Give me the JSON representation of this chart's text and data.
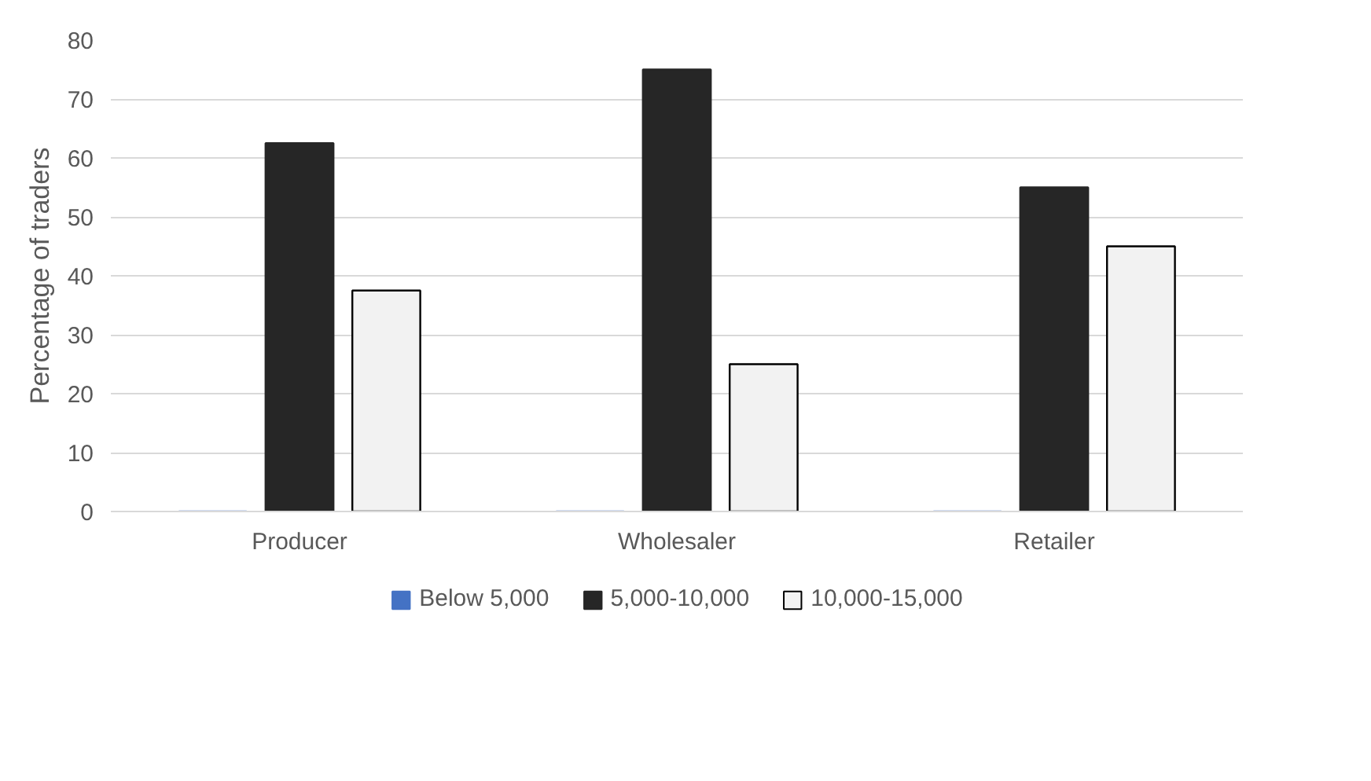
{
  "chart_data": {
    "type": "bar",
    "ylabel": "Percentage of traders",
    "categories": [
      "Producer",
      "Wholesaler",
      "Retailer"
    ],
    "series": [
      {
        "name": "Below 5,000",
        "color": "#4472c4",
        "values": [
          0,
          0,
          0
        ]
      },
      {
        "name": "5,000-10,000",
        "color": "#262626",
        "values": [
          62.5,
          75,
          55
        ]
      },
      {
        "name": "10,000-15,000",
        "color": "#f2f2f2",
        "values": [
          37.5,
          25,
          45
        ]
      }
    ],
    "ylim": [
      0,
      80
    ],
    "yticks": [
      0,
      10,
      20,
      30,
      40,
      50,
      60,
      70,
      80
    ],
    "grid": "y",
    "legend": "bottom"
  }
}
